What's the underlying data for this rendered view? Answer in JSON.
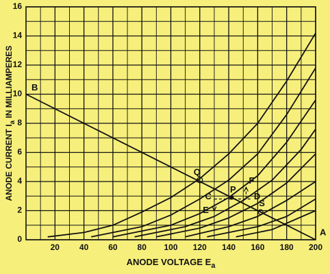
{
  "chart_data": {
    "type": "line",
    "xlabel": {
      "main": "ANODE VOLTAGE E",
      "sub": "a"
    },
    "ylabel": {
      "main": "ANODE CURRENT I",
      "sub": "a",
      "rest": " IN MILLIAMPERES"
    },
    "xlim": [
      0,
      200
    ],
    "ylim": [
      0,
      16
    ],
    "xticks": [
      20,
      40,
      60,
      80,
      100,
      120,
      140,
      160,
      180,
      200
    ],
    "yticks": [
      0,
      2,
      4,
      6,
      8,
      10,
      12,
      14,
      16
    ],
    "grid": true,
    "series": [
      {
        "color": "#111111",
        "x": [
          15,
          40,
          60,
          80,
          100,
          120,
          140,
          160,
          180,
          200
        ],
        "values": [
          0.2,
          0.5,
          1.0,
          1.9,
          2.9,
          4.2,
          5.9,
          8.0,
          10.9,
          14.2
        ]
      },
      {
        "color": "#111111",
        "x": [
          45,
          80,
          100,
          120,
          140,
          160,
          180,
          200
        ],
        "values": [
          0.2,
          0.9,
          1.7,
          2.8,
          4.1,
          5.9,
          8.6,
          11.8
        ]
      },
      {
        "color": "#111111",
        "x": [
          60,
          100,
          120,
          140,
          160,
          180,
          200
        ],
        "values": [
          0.2,
          1.0,
          1.8,
          2.9,
          4.4,
          6.7,
          9.6
        ]
      },
      {
        "color": "#111111",
        "x": [
          75,
          110,
          130,
          150,
          170,
          190,
          200
        ],
        "values": [
          0.2,
          0.9,
          1.6,
          2.7,
          4.1,
          6.2,
          7.6
        ]
      },
      {
        "color": "#111111",
        "x": [
          90,
          120,
          140,
          160,
          180,
          200
        ],
        "values": [
          0.2,
          0.8,
          1.5,
          2.5,
          3.9,
          5.9
        ]
      },
      {
        "color": "#111111",
        "x": [
          110,
          140,
          160,
          180,
          200
        ],
        "values": [
          0.2,
          0.9,
          1.6,
          2.7,
          4.0
        ]
      },
      {
        "color": "#111111",
        "x": [
          125,
          160,
          180,
          200
        ],
        "values": [
          0.2,
          0.9,
          1.6,
          2.8
        ]
      },
      {
        "color": "#111111",
        "x": [
          145,
          170,
          200
        ],
        "values": [
          0.2,
          0.7,
          2.0
        ]
      },
      {
        "color": "#111111",
        "x": [
          0,
          200
        ],
        "values": [
          10,
          0
        ]
      }
    ],
    "annotations": [
      {
        "text": "B",
        "x": 0,
        "y": 10
      },
      {
        "text": "Q",
        "x": 120,
        "y": 4.1
      },
      {
        "text": "C",
        "x": 130,
        "y": 2.8
      },
      {
        "text": "P",
        "x": 142,
        "y": 2.9
      },
      {
        "text": "D",
        "x": 155,
        "y": 2.8
      },
      {
        "text": "E",
        "x": 130,
        "y": 2.0
      },
      {
        "text": "F",
        "x": 152,
        "y": 3.6
      },
      {
        "text": "S",
        "x": 162,
        "y": 1.9
      },
      {
        "text": "A",
        "x": 200,
        "y": 0
      }
    ]
  }
}
